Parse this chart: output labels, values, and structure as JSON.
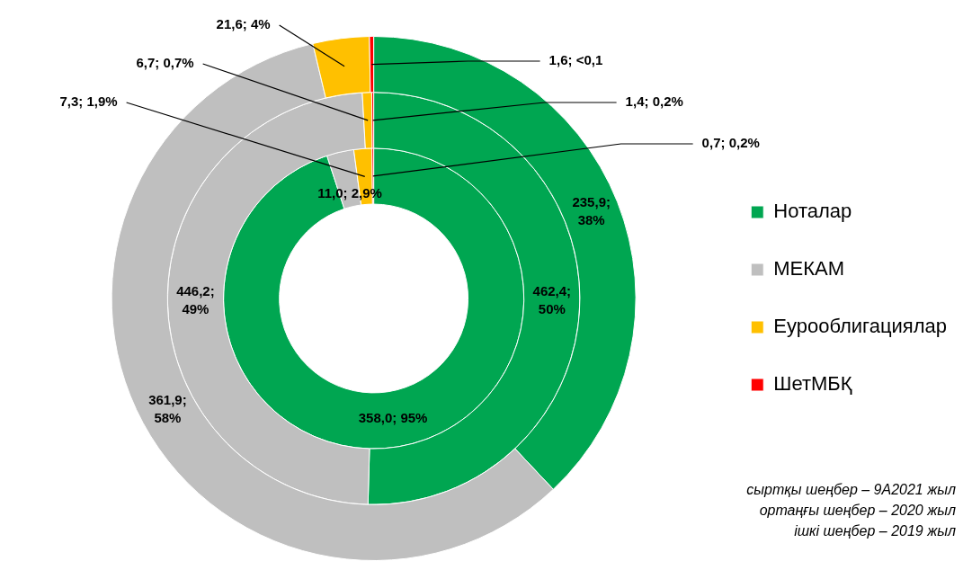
{
  "chart_data": {
    "type": "donut",
    "categories": [
      "Ноталар",
      "МЕКАМ",
      "Еурооблигациялар",
      "ШетМБҚ"
    ],
    "colors": [
      "#00a651",
      "#bfbfbf",
      "#ffc000",
      "#ff0000"
    ],
    "series": [
      {
        "values": [
          358.0,
          11.0,
          7.3,
          0.7
        ],
        "value_labels": [
          "358,0; 95%",
          "11,0; 2,9%",
          "7,3; 1,9%",
          "0,7; 0,2%"
        ]
      },
      {
        "values": [
          462.4,
          446.2,
          6.7,
          1.4
        ],
        "value_labels": [
          "462,4;\n50%",
          "446,2;\n49%",
          "6,7; 0,7%",
          "1,4; 0,2%"
        ]
      },
      {
        "values": [
          235.9,
          361.9,
          21.6,
          1.6
        ],
        "value_labels": [
          "235,9;\n38%",
          "361,9;\n58%",
          "21,6; 4%",
          "1,6; <0,1"
        ]
      }
    ],
    "legend": "right",
    "annotations": [
      "сыртқы шеңбер – 9А2021 жыл",
      "ортаңғы шеңбер – 2020 жыл",
      "ішкі шеңбер – 2019 жыл"
    ]
  }
}
